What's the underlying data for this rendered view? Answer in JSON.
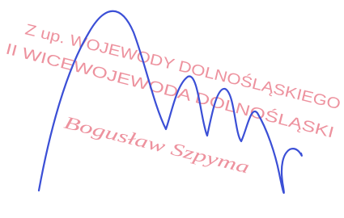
{
  "stamp": {
    "line1": "Z up. WOJEWODY DOLNOŚLĄSKIEGO",
    "line2": "II WICEWOJEWODA DOLNOŚLĄSKI",
    "name": "Bogusław Szpyma"
  }
}
